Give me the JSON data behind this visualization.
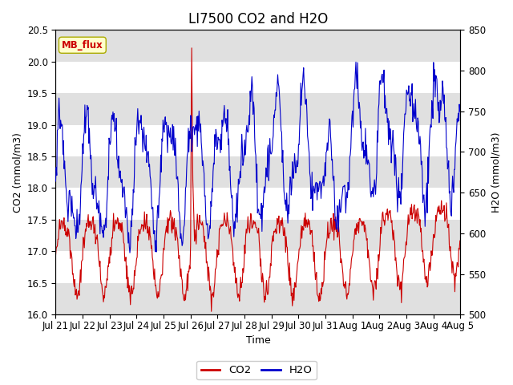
{
  "title": "LI7500 CO2 and H2O",
  "xlabel": "Time",
  "ylabel_left": "CO2 (mmol/m3)",
  "ylabel_right": "H2O (mmol/m3)",
  "co2_color": "#cc0000",
  "h2o_color": "#0000cc",
  "ylim_left": [
    16.0,
    20.5
  ],
  "ylim_right": [
    500,
    850
  ],
  "yticks_left": [
    16.0,
    16.5,
    17.0,
    17.5,
    18.0,
    18.5,
    19.0,
    19.5,
    20.0,
    20.5
  ],
  "yticks_right": [
    500,
    550,
    600,
    650,
    700,
    750,
    800,
    850
  ],
  "annotation_text": "MB_flux",
  "background_color": "#ffffff",
  "band_color": "#e0e0e0",
  "legend_co2": "CO2",
  "legend_h2o": "H2O",
  "title_fontsize": 12,
  "label_fontsize": 9,
  "tick_fontsize": 8.5
}
